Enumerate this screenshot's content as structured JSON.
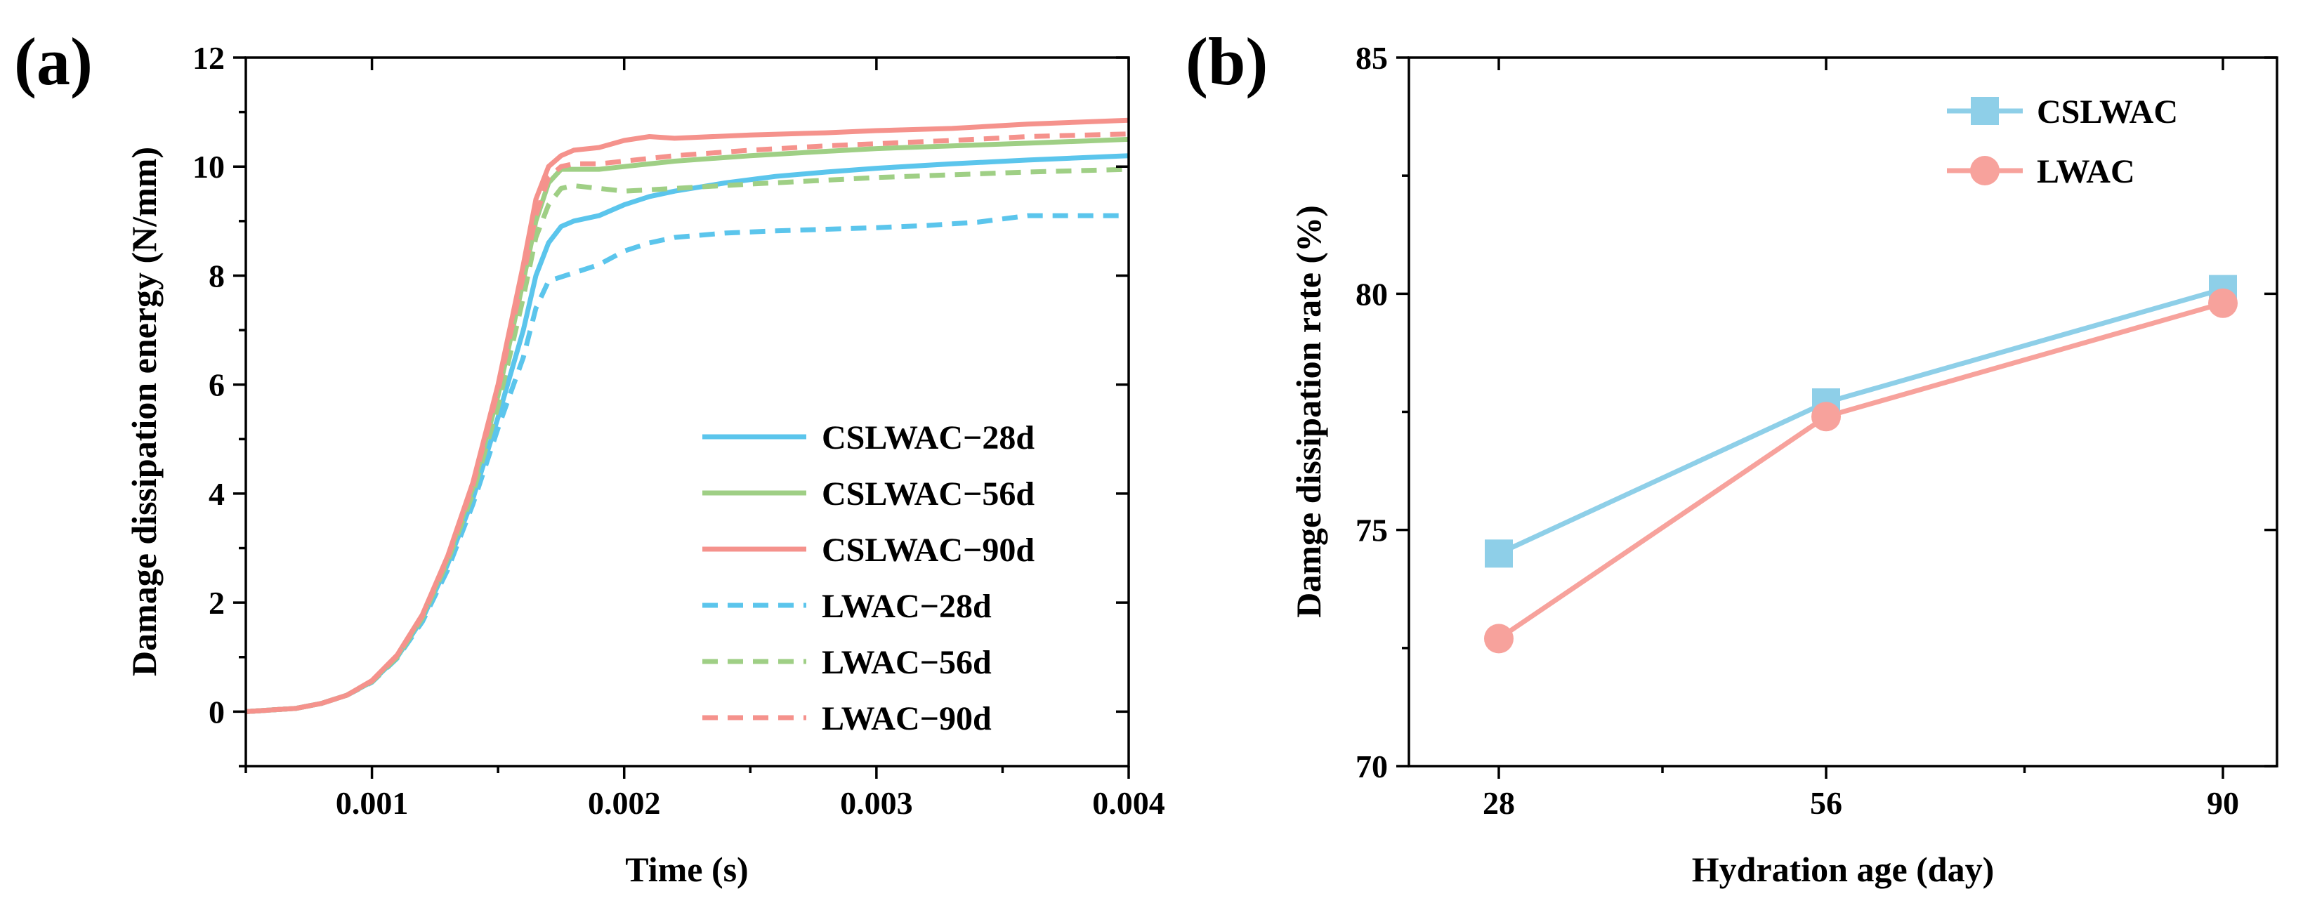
{
  "chart_data": [
    {
      "panel_label": "(a)",
      "type": "line",
      "xlabel": "Time (s)",
      "ylabel": "Damage dissipation energy (N/mm)",
      "xlim": [
        0.0005,
        0.004
      ],
      "ylim": [
        -1,
        12
      ],
      "xticks": [
        0.001,
        0.002,
        0.003,
        0.004
      ],
      "xtick_labels": [
        "0.001",
        "0.002",
        "0.003",
        "0.004"
      ],
      "yticks": [
        0,
        2,
        4,
        6,
        8,
        10,
        12
      ],
      "ytick_labels": [
        "0",
        "2",
        "4",
        "6",
        "8",
        "10",
        "12"
      ],
      "legend_position": "center-right",
      "series": [
        {
          "name": "CSLWAC−28d",
          "color": "#5bc5ec",
          "dash": "solid",
          "x": [
            0.0005,
            0.0007,
            0.0008,
            0.0009,
            0.001,
            0.0011,
            0.0012,
            0.0013,
            0.0014,
            0.0015,
            0.0016,
            0.00165,
            0.0017,
            0.00175,
            0.0018,
            0.0019,
            0.002,
            0.0021,
            0.0022,
            0.0024,
            0.0026,
            0.0028,
            0.003,
            0.0033,
            0.0036,
            0.004
          ],
          "y": [
            0,
            0.06,
            0.15,
            0.3,
            0.55,
            1.0,
            1.7,
            2.7,
            3.9,
            5.4,
            7.0,
            8.0,
            8.6,
            8.9,
            9.0,
            9.1,
            9.3,
            9.45,
            9.55,
            9.7,
            9.82,
            9.9,
            9.97,
            10.05,
            10.12,
            10.2
          ]
        },
        {
          "name": "CSLWAC−56d",
          "color": "#9fcf85",
          "dash": "solid",
          "x": [
            0.0005,
            0.0007,
            0.0008,
            0.0009,
            0.001,
            0.0011,
            0.0012,
            0.0013,
            0.0014,
            0.0015,
            0.0016,
            0.00165,
            0.0017,
            0.00175,
            0.0018,
            0.0019,
            0.002,
            0.0022,
            0.0025,
            0.0028,
            0.003,
            0.0033,
            0.0036,
            0.004
          ],
          "y": [
            0,
            0.06,
            0.15,
            0.3,
            0.56,
            1.02,
            1.75,
            2.8,
            4.1,
            5.8,
            7.9,
            9.0,
            9.7,
            9.95,
            9.95,
            9.95,
            10.0,
            10.1,
            10.2,
            10.28,
            10.33,
            10.38,
            10.43,
            10.5
          ]
        },
        {
          "name": "CSLWAC−90d",
          "color": "#f5928c",
          "dash": "solid",
          "x": [
            0.0005,
            0.0007,
            0.0008,
            0.0009,
            0.001,
            0.0011,
            0.0012,
            0.0013,
            0.0014,
            0.0015,
            0.0016,
            0.00165,
            0.0017,
            0.00175,
            0.0018,
            0.0019,
            0.002,
            0.0021,
            0.0022,
            0.0025,
            0.0028,
            0.003,
            0.0033,
            0.0036,
            0.004
          ],
          "y": [
            0,
            0.06,
            0.15,
            0.3,
            0.57,
            1.04,
            1.78,
            2.85,
            4.2,
            6.0,
            8.2,
            9.4,
            10.0,
            10.2,
            10.3,
            10.35,
            10.48,
            10.55,
            10.52,
            10.58,
            10.62,
            10.66,
            10.7,
            10.78,
            10.85
          ]
        },
        {
          "name": "LWAC−28d",
          "color": "#5bc5ec",
          "dash": "dashed",
          "x": [
            0.0005,
            0.0007,
            0.0008,
            0.0009,
            0.001,
            0.0011,
            0.0012,
            0.0013,
            0.0014,
            0.0015,
            0.0016,
            0.00165,
            0.0017,
            0.0018,
            0.0019,
            0.002,
            0.0021,
            0.0022,
            0.0024,
            0.0026,
            0.0028,
            0.003,
            0.0032,
            0.0034,
            0.0036,
            0.004
          ],
          "y": [
            0,
            0.06,
            0.15,
            0.3,
            0.54,
            0.98,
            1.65,
            2.6,
            3.8,
            5.2,
            6.5,
            7.4,
            7.9,
            8.05,
            8.2,
            8.45,
            8.6,
            8.7,
            8.78,
            8.82,
            8.85,
            8.88,
            8.92,
            8.98,
            9.1,
            9.1
          ]
        },
        {
          "name": "LWAC−56d",
          "color": "#9fcf85",
          "dash": "dashed",
          "x": [
            0.0005,
            0.0007,
            0.0008,
            0.0009,
            0.001,
            0.0011,
            0.0012,
            0.0013,
            0.0014,
            0.0015,
            0.0016,
            0.00165,
            0.0017,
            0.00175,
            0.0018,
            0.0019,
            0.002,
            0.0022,
            0.0025,
            0.0028,
            0.003,
            0.0033,
            0.0036,
            0.004
          ],
          "y": [
            0,
            0.06,
            0.15,
            0.3,
            0.55,
            1.0,
            1.72,
            2.75,
            4.0,
            5.6,
            7.6,
            8.7,
            9.3,
            9.6,
            9.65,
            9.6,
            9.55,
            9.6,
            9.68,
            9.75,
            9.8,
            9.85,
            9.9,
            9.95
          ]
        },
        {
          "name": "LWAC−90d",
          "color": "#f5928c",
          "dash": "dashed",
          "x": [
            0.0005,
            0.0007,
            0.0008,
            0.0009,
            0.001,
            0.0011,
            0.0012,
            0.0013,
            0.0014,
            0.0015,
            0.0016,
            0.00165,
            0.0017,
            0.00175,
            0.0018,
            0.0019,
            0.002,
            0.0022,
            0.0025,
            0.0028,
            0.003,
            0.0033,
            0.0036,
            0.004
          ],
          "y": [
            0,
            0.06,
            0.15,
            0.3,
            0.56,
            1.03,
            1.76,
            2.82,
            4.15,
            5.9,
            8.0,
            9.1,
            9.8,
            10.0,
            10.05,
            10.05,
            10.1,
            10.2,
            10.3,
            10.38,
            10.42,
            10.48,
            10.55,
            10.6
          ]
        }
      ]
    },
    {
      "panel_label": "(b)",
      "type": "line",
      "xlabel": "Hydration age (day)",
      "ylabel": "Damge dissipation rate (%)",
      "categories": [
        "28",
        "56",
        "90"
      ],
      "ylim": [
        70,
        85
      ],
      "yticks": [
        70,
        75,
        80,
        85
      ],
      "ytick_labels": [
        "70",
        "75",
        "80",
        "85"
      ],
      "legend_position": "top-right",
      "series": [
        {
          "name": "CSLWAC",
          "color": "#8ecfe8",
          "marker": "square",
          "values": [
            74.5,
            77.7,
            80.1
          ]
        },
        {
          "name": "LWAC",
          "color": "#f7a29c",
          "marker": "circle",
          "values": [
            72.7,
            77.4,
            79.8
          ]
        }
      ]
    }
  ]
}
